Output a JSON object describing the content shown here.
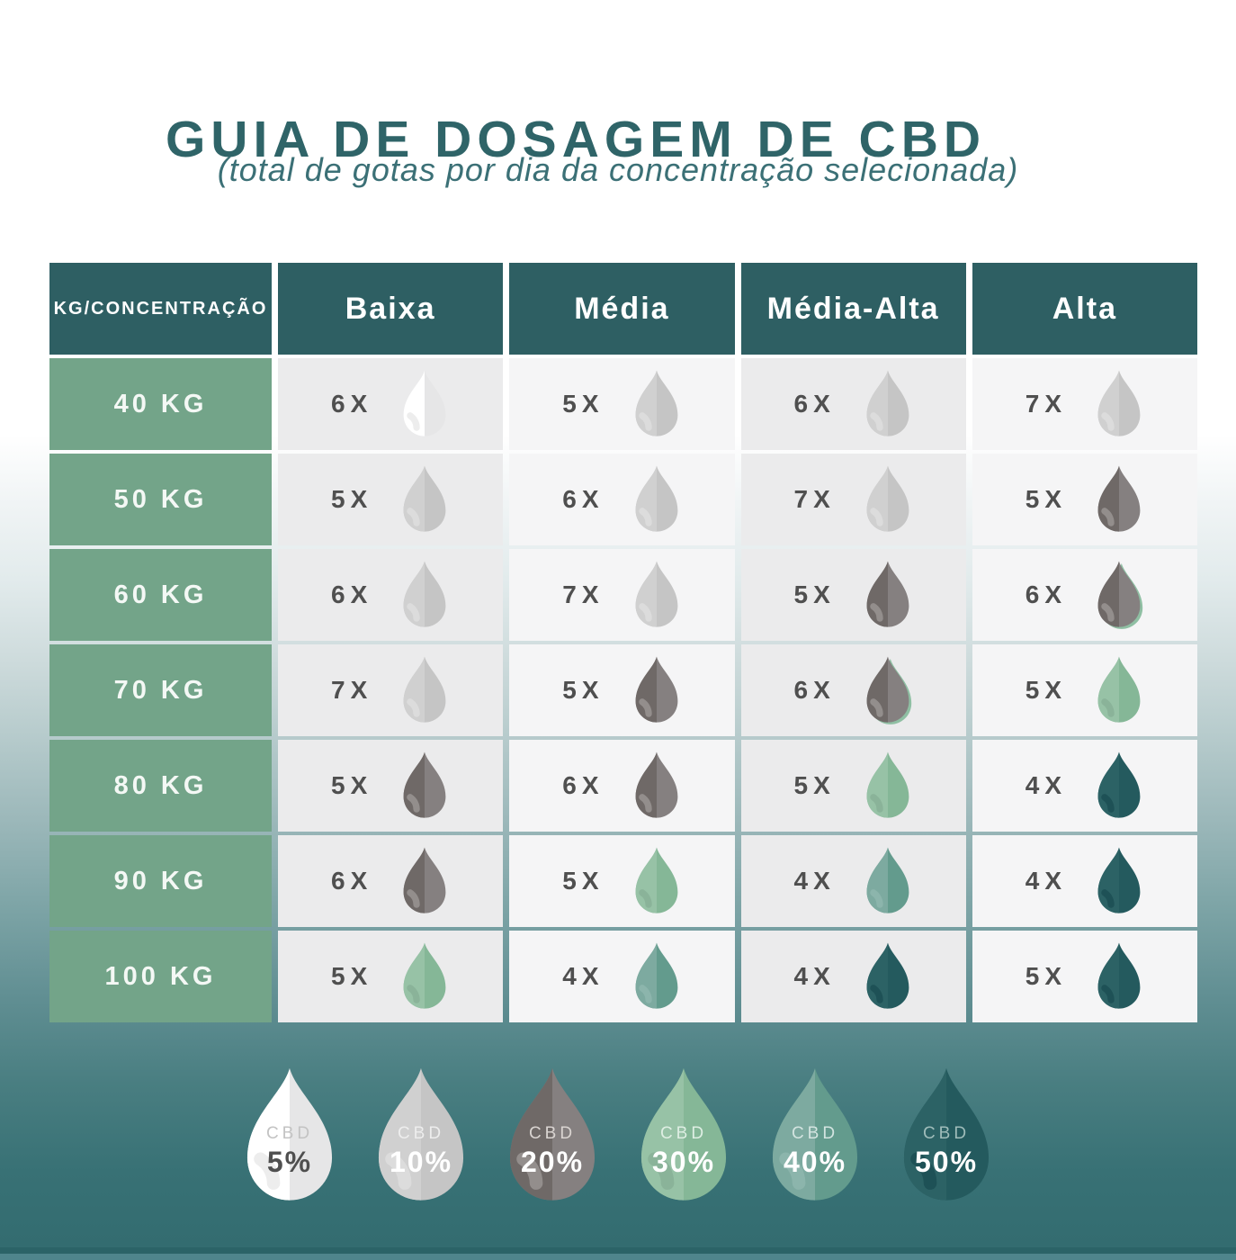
{
  "chart_data": {
    "type": "table",
    "title": "GUIA DE DOSAGEM DE CBD",
    "subtitle": "(total de gotas por dia da concentração selecionada)",
    "columns": [
      "KG/CONCENTRAÇÃO",
      "Baixa",
      "Média",
      "Média-Alta",
      "Alta"
    ],
    "rows": [
      {
        "weight": "40 KG",
        "cells": [
          {
            "count": "6X",
            "cbd": "5"
          },
          {
            "count": "5X",
            "cbd": "10"
          },
          {
            "count": "6X",
            "cbd": "10"
          },
          {
            "count": "7X",
            "cbd": "10"
          }
        ]
      },
      {
        "weight": "50 KG",
        "cells": [
          {
            "count": "5X",
            "cbd": "10"
          },
          {
            "count": "6X",
            "cbd": "10"
          },
          {
            "count": "7X",
            "cbd": "10"
          },
          {
            "count": "5X",
            "cbd": "20"
          }
        ]
      },
      {
        "weight": "60 KG",
        "cells": [
          {
            "count": "6X",
            "cbd": "10"
          },
          {
            "count": "7X",
            "cbd": "10"
          },
          {
            "count": "5X",
            "cbd": "20"
          },
          {
            "count": "6X",
            "cbd": "20",
            "accent": true
          }
        ]
      },
      {
        "weight": "70 KG",
        "cells": [
          {
            "count": "7X",
            "cbd": "10"
          },
          {
            "count": "5X",
            "cbd": "20"
          },
          {
            "count": "6X",
            "cbd": "20",
            "accent": true
          },
          {
            "count": "5X",
            "cbd": "30"
          }
        ]
      },
      {
        "weight": "80 KG",
        "cells": [
          {
            "count": "5X",
            "cbd": "20"
          },
          {
            "count": "6X",
            "cbd": "20"
          },
          {
            "count": "5X",
            "cbd": "30"
          },
          {
            "count": "4X",
            "cbd": "50"
          }
        ]
      },
      {
        "weight": "90 KG",
        "cells": [
          {
            "count": "6X",
            "cbd": "20"
          },
          {
            "count": "5X",
            "cbd": "30"
          },
          {
            "count": "4X",
            "cbd": "40"
          },
          {
            "count": "4X",
            "cbd": "50"
          }
        ]
      },
      {
        "weight": "100 KG",
        "cells": [
          {
            "count": "5X",
            "cbd": "30"
          },
          {
            "count": "4X",
            "cbd": "40"
          },
          {
            "count": "4X",
            "cbd": "50"
          },
          {
            "count": "5X",
            "cbd": "50"
          }
        ]
      }
    ],
    "legend": [
      {
        "label": "CBD",
        "value": "5%",
        "cbd": "5"
      },
      {
        "label": "CBD",
        "value": "10%",
        "cbd": "10"
      },
      {
        "label": "CBD",
        "value": "20%",
        "cbd": "20"
      },
      {
        "label": "CBD",
        "value": "30%",
        "cbd": "30"
      },
      {
        "label": "CBD",
        "value": "40%",
        "cbd": "40"
      },
      {
        "label": "CBD",
        "value": "50%",
        "cbd": "50"
      }
    ]
  },
  "colors": {
    "title": "#2f6468",
    "subtitle": "#3b7076",
    "header_bg": "#2e5f63",
    "header_text": "#ffffff",
    "weight_bg": "#73a489",
    "weight_text": "#f4f8f5",
    "cell_bg_dark": "#ebebec",
    "cell_bg_light": "#f5f5f6",
    "count_text": "#4f4f4f",
    "accent_edge": "#8fbfa3",
    "droplets": {
      "5": {
        "left": "#ffffff",
        "right": "#e6e6e7",
        "shine": "#ededed",
        "label": "#c3c3c3",
        "pct": "#4f4f4f"
      },
      "10": {
        "left": "#d0d0d0",
        "right": "#c5c5c5",
        "shine": "#dcdcdc",
        "label": "#ededed",
        "pct": "#ffffff"
      },
      "20": {
        "left": "#6f6967",
        "right": "#858080",
        "shine": "#938e8c",
        "label": "#d9d4d1",
        "pct": "#ffffff"
      },
      "30": {
        "left": "#97c2a6",
        "right": "#85b797",
        "shine": "#8ab399",
        "label": "#deeee3",
        "pct": "#ffffff"
      },
      "40": {
        "left": "#7daaa0",
        "right": "#639b8d",
        "shine": "#8cb5ac",
        "label": "#d3e4e0",
        "pct": "#ffffff"
      },
      "50": {
        "left": "#2c6265",
        "right": "#245a5e",
        "shine": "#1e5156",
        "label": "#9fbcba",
        "pct": "#ffffff"
      }
    }
  }
}
